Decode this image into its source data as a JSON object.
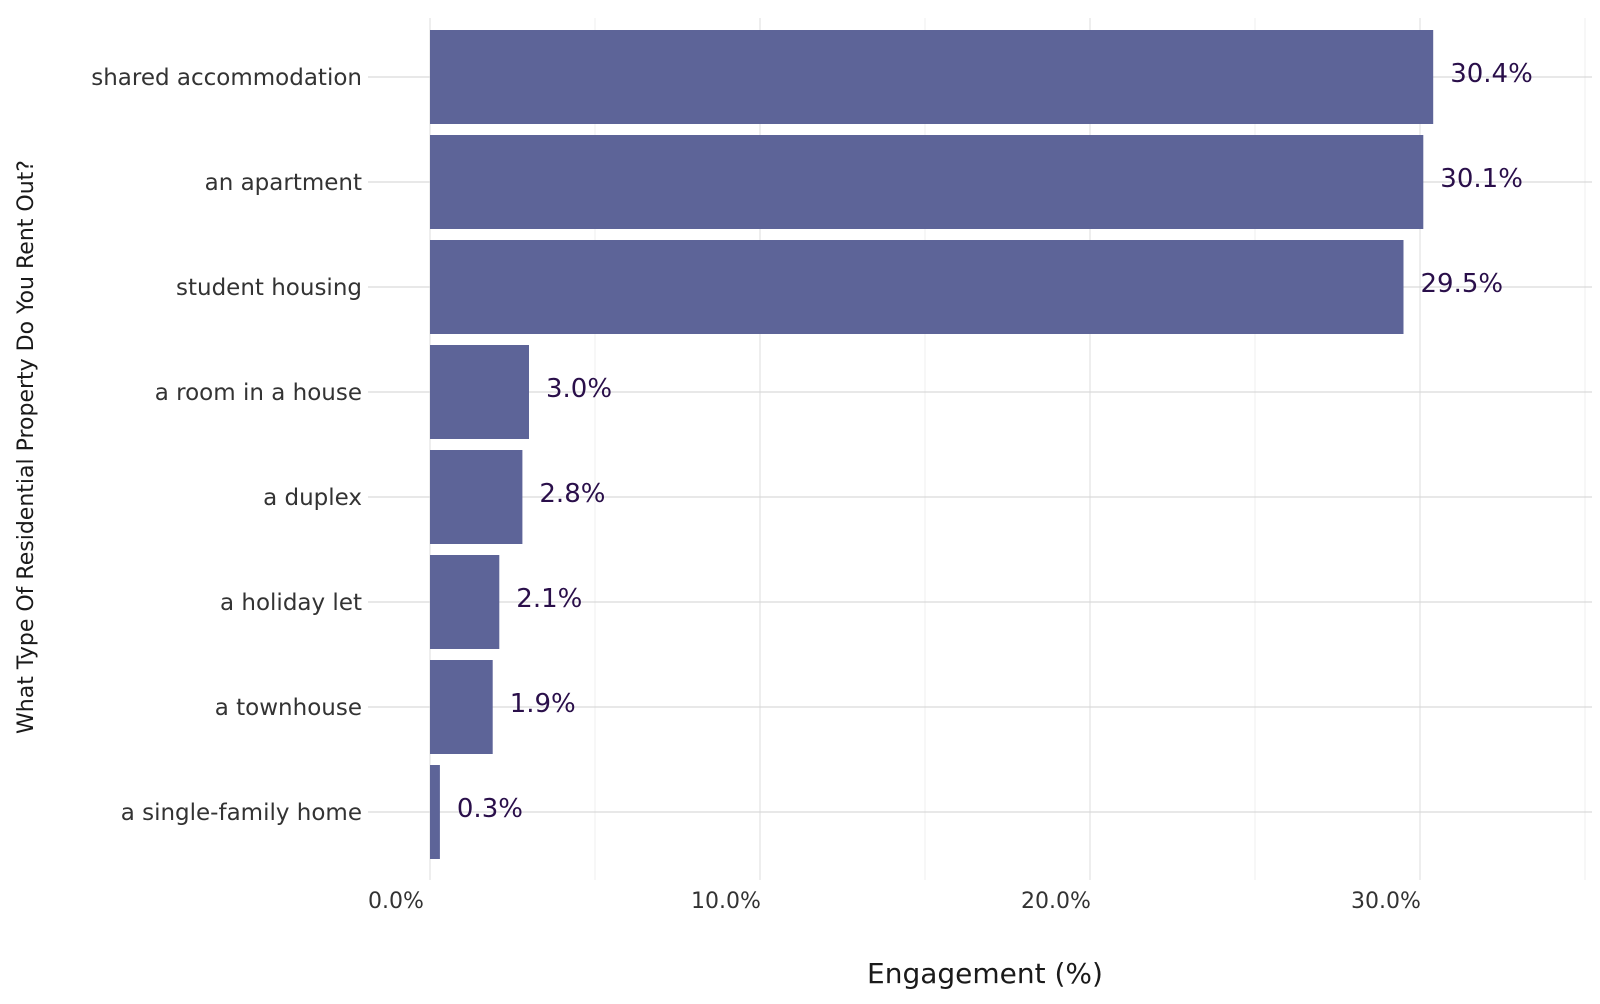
{
  "chart_data": {
    "type": "bar",
    "orientation": "horizontal",
    "title": "",
    "xlabel": "Engagement (%)",
    "ylabel": "What Type Of Residential Property Do You Rent Out?",
    "categories": [
      "shared accommodation",
      "an apartment",
      "student housing",
      "a room in a house",
      "a duplex",
      "a holiday let",
      "a townhouse",
      "a single-family home"
    ],
    "values": [
      30.4,
      30.1,
      29.5,
      3.0,
      2.8,
      2.1,
      1.9,
      0.3
    ],
    "data_labels": [
      "30.4%",
      "30.1%",
      "29.5%",
      "3.0%",
      "2.8%",
      "2.1%",
      "1.9%",
      "0.3%"
    ],
    "xlim": [
      0,
      35
    ],
    "x_ticks": [
      0,
      10,
      20,
      30
    ],
    "x_tick_labels": [
      "0.0%",
      "10.0%",
      "20.0%",
      "30.0%"
    ],
    "grid": true,
    "legend": "none",
    "colors": {
      "bar": "#5d6498",
      "label": "#2a0f4a",
      "grid": "#dedede",
      "text": "#333333"
    }
  }
}
